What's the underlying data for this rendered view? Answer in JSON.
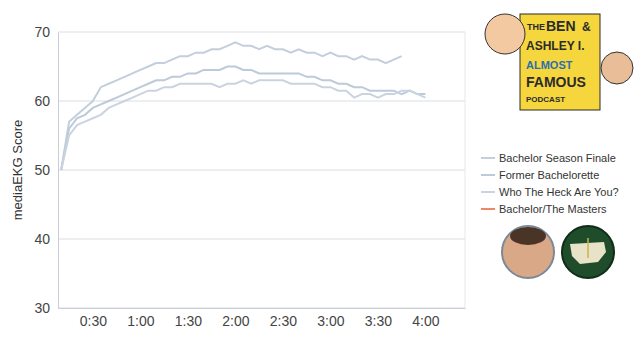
{
  "chart_data": {
    "type": "line",
    "y_label": "mediaEKG Score",
    "annotations": [
      "THE",
      "BEN",
      "&",
      "ASHLEY I.",
      "ALMOST",
      "FAMOUS",
      "PODCAST"
    ],
    "x": [
      10,
      15,
      20,
      25,
      30,
      35,
      40,
      45,
      50,
      55,
      60,
      65,
      70,
      75,
      80,
      85,
      90,
      95,
      100,
      105,
      110,
      115,
      120,
      125,
      130,
      135,
      140,
      145,
      150,
      155,
      160,
      165,
      170,
      175,
      180,
      185,
      190,
      195,
      200,
      205,
      210,
      215,
      220,
      225,
      230,
      235,
      240
    ],
    "series": [
      {
        "name": "Bachelor Season Finale",
        "color": "#c3cfdc",
        "values": [
          50,
          57,
          58,
          59,
          60,
          62,
          62.5,
          63,
          63.5,
          64,
          64.5,
          65,
          65.5,
          65.5,
          66,
          66.5,
          66.5,
          67,
          67,
          67.5,
          67.5,
          68,
          68.5,
          68,
          68,
          67.5,
          68,
          67.5,
          67.5,
          67,
          67.5,
          67,
          67,
          66.5,
          67,
          66.5,
          66.5,
          66,
          66.5,
          66,
          66,
          65.5,
          66,
          66.5,
          null,
          null,
          null
        ]
      },
      {
        "name": "Former Bachelorette",
        "color": "#bccad9",
        "values": [
          50,
          56,
          57.5,
          58,
          59,
          59.5,
          60,
          60.5,
          61,
          61.5,
          62,
          62.5,
          63,
          63,
          63.5,
          63.5,
          64,
          64,
          64.5,
          64.5,
          64.5,
          65,
          65,
          64.5,
          64.5,
          64,
          64,
          64,
          64,
          64,
          64,
          63.5,
          63.5,
          63,
          63,
          62.5,
          62.5,
          62,
          62,
          61.5,
          61.5,
          61.5,
          61.5,
          61,
          61.5,
          61,
          61
        ]
      },
      {
        "name": "Who The Heck Are You?",
        "color": "#cad4e0",
        "values": [
          50,
          55,
          56.5,
          57,
          57.5,
          58,
          59,
          59.5,
          60,
          60.5,
          61,
          61.5,
          61.5,
          62,
          62,
          62.5,
          62.5,
          62.5,
          62.5,
          62.5,
          62,
          62.5,
          62.5,
          63,
          62.5,
          63,
          63,
          63,
          63,
          62.5,
          62.5,
          62.5,
          62.5,
          62,
          62,
          61.5,
          61.5,
          60.5,
          61,
          61,
          60.5,
          61,
          61,
          61.5,
          61.5,
          61,
          60.5
        ]
      },
      {
        "name": "Bachelor/The Masters",
        "color": "#ee8a63",
        "values": [
          null,
          null,
          null,
          null,
          null,
          null,
          null,
          null,
          null,
          null,
          null,
          null,
          null,
          null,
          null,
          null,
          null,
          null,
          null,
          null,
          null,
          null,
          null,
          null,
          null,
          null,
          null,
          null,
          null,
          null,
          null,
          null,
          null,
          null,
          null,
          null,
          null,
          null,
          null,
          null,
          null,
          null,
          null,
          null,
          null,
          null,
          null
        ]
      }
    ],
    "xlim": [
      8,
      265
    ],
    "xticks": [
      {
        "value": 30,
        "label": "0:30"
      },
      {
        "value": 60,
        "label": "1:00"
      },
      {
        "value": 90,
        "label": "1:30"
      },
      {
        "value": 120,
        "label": "2:00"
      },
      {
        "value": 150,
        "label": "2:30"
      },
      {
        "value": 180,
        "label": "3:00"
      },
      {
        "value": 210,
        "label": "3:30"
      },
      {
        "value": 240,
        "label": "4:00"
      }
    ],
    "ylim": [
      30,
      70
    ],
    "yticks": [
      30,
      40,
      50,
      60,
      70
    ],
    "grid": true,
    "legend": "right"
  }
}
